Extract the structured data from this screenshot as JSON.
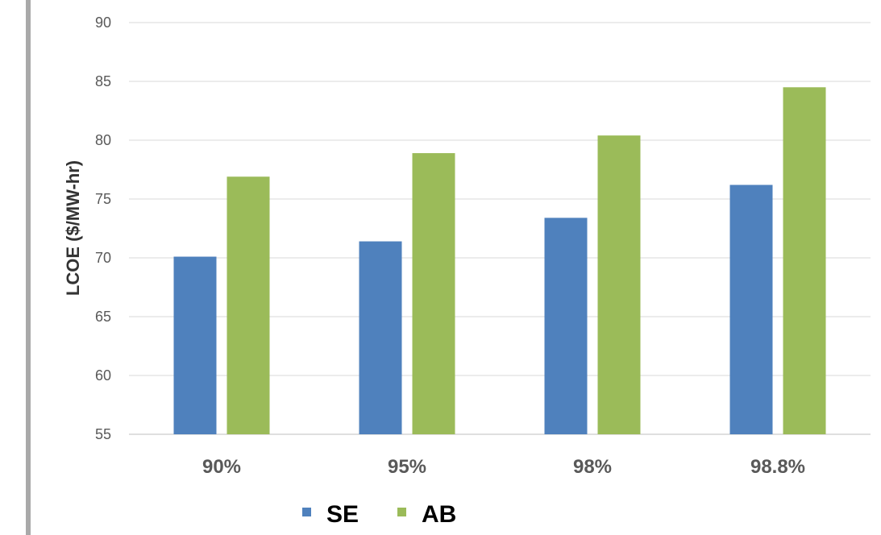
{
  "chart_data": {
    "type": "bar",
    "title": "",
    "xlabel": "",
    "ylabel": "LCOE ($/MW-hr)",
    "categories": [
      "90%",
      "95%",
      "98%",
      "98.8%"
    ],
    "series": [
      {
        "name": "SE",
        "color": "#4f81bd",
        "values": [
          70.1,
          71.4,
          73.4,
          76.2
        ]
      },
      {
        "name": "AB",
        "color": "#9bbb59",
        "values": [
          76.9,
          78.9,
          80.4,
          84.5
        ]
      }
    ],
    "ylim": [
      55,
      90
    ],
    "yticks": [
      55,
      60,
      65,
      70,
      75,
      80,
      85,
      90
    ],
    "grid": true,
    "legend_position": "bottom"
  }
}
